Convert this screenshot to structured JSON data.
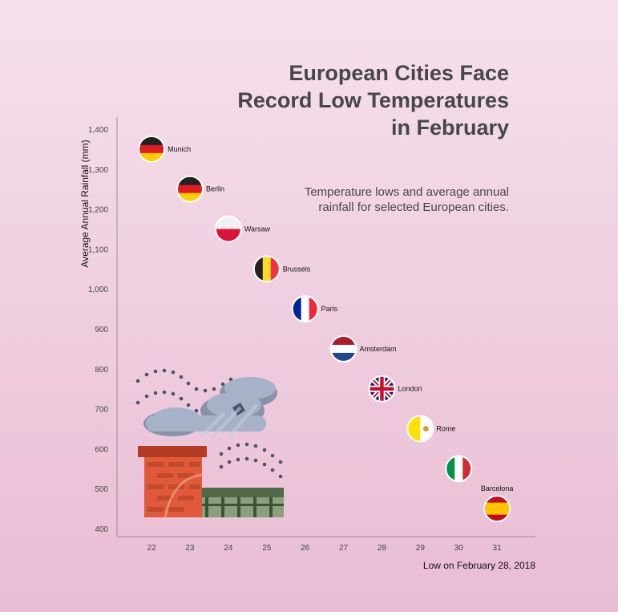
{
  "title": "European Cities Face Record Low Temperatures in February",
  "subtitle": "Temperature lows and average annual rainfall for selected European cities.",
  "chart_data": {
    "type": "scatter",
    "title": "European Cities Face Record Low Temperatures in February",
    "subtitle": "Temperature lows and average annual rainfall for selected European cities.",
    "xlabel": "Low on February 28, 2018",
    "ylabel": "Average Annual Rainfall (mm)",
    "xlim": [
      21.1,
      32
    ],
    "ylim": [
      380,
      1430
    ],
    "x_ticks": [
      "22",
      "23",
      "24",
      "25",
      "26",
      "27",
      "28",
      "29",
      "30",
      "31"
    ],
    "y_ticks": [
      "400",
      "500",
      "600",
      "700",
      "800",
      "900",
      "1,000",
      "1,100",
      "1,200",
      "1,300",
      "1,400"
    ],
    "grid": false,
    "points": [
      {
        "label": "Munich",
        "x": 22,
        "y": 1350,
        "flag": "germany"
      },
      {
        "label": "Berlin",
        "x": 23,
        "y": 1250,
        "flag": "germany"
      },
      {
        "label": "Warsaw",
        "x": 24,
        "y": 1150,
        "flag": "poland"
      },
      {
        "label": "Brussels",
        "x": 25,
        "y": 1050,
        "flag": "belgium"
      },
      {
        "label": "Paris",
        "x": 26,
        "y": 950,
        "flag": "france"
      },
      {
        "label": "Amsterdam",
        "x": 27,
        "y": 850,
        "flag": "netherlands"
      },
      {
        "label": "London",
        "x": 28,
        "y": 750,
        "flag": "uk"
      },
      {
        "label": "Rome",
        "x": 29,
        "y": 650,
        "flag": "vatican"
      },
      {
        "label": "Italy",
        "x": 30,
        "y": 550,
        "flag": "italy",
        "hide_label": true
      },
      {
        "label": "Barcelona",
        "x": 31,
        "y": 450,
        "flag": "spain",
        "label_above": true
      }
    ]
  },
  "colors": {
    "axis": "#9a8a94",
    "text": "#474747",
    "cloud": "#a6b2c8",
    "brick": "#e05a3a",
    "wall": "#6d8a64"
  },
  "illustration": {
    "icon": "chimney-cloud-illustration"
  }
}
